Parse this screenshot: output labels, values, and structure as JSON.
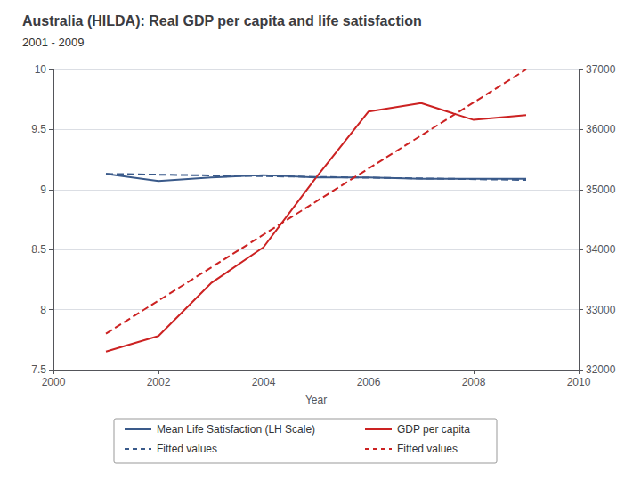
{
  "chart_data": {
    "type": "line",
    "title": "Australia (HILDA): Real GDP per capita and life satisfaction",
    "subtitle": "2001 - 2009",
    "xlabel": "Year",
    "xlim": [
      2000,
      2010
    ],
    "xticks": [
      2000,
      2002,
      2004,
      2006,
      2008,
      2010
    ],
    "ylim": [
      7.5,
      10.0
    ],
    "yticks": [
      7.5,
      8,
      8.5,
      9,
      9.5,
      10
    ],
    "y2lim": [
      32000,
      37000
    ],
    "y2ticks": [
      32000,
      33000,
      34000,
      35000,
      36000,
      37000
    ],
    "grid": true,
    "legend": "bottom",
    "series": [
      {
        "name": "Mean Life Satisfaction (LH Scale)",
        "color": "#3a5a8a",
        "line_style": "solid",
        "x": [
          2001,
          2002,
          2003,
          2004,
          2005,
          2006,
          2007,
          2008,
          2009
        ],
        "values": [
          9.13,
          9.07,
          9.1,
          9.12,
          9.1,
          9.1,
          9.09,
          9.09,
          9.09
        ]
      },
      {
        "name": "GDP per capita",
        "color": "#cc2222",
        "line_style": "solid",
        "x": [
          2001,
          2002,
          2003,
          2004,
          2005,
          2006,
          2007,
          2008,
          2009
        ],
        "values": [
          7.65,
          7.78,
          8.22,
          8.52,
          9.1,
          9.65,
          9.72,
          9.58,
          9.62
        ]
      },
      {
        "name": "Fitted values",
        "color": "#3a5a8a",
        "line_style": "dashed",
        "x": [
          2001,
          2009
        ],
        "values": [
          9.13,
          9.08
        ]
      },
      {
        "name": "Fitted values",
        "color": "#cc2222",
        "line_style": "dashed",
        "x": [
          2001,
          2009
        ],
        "values": [
          7.8,
          10.0
        ]
      }
    ]
  }
}
